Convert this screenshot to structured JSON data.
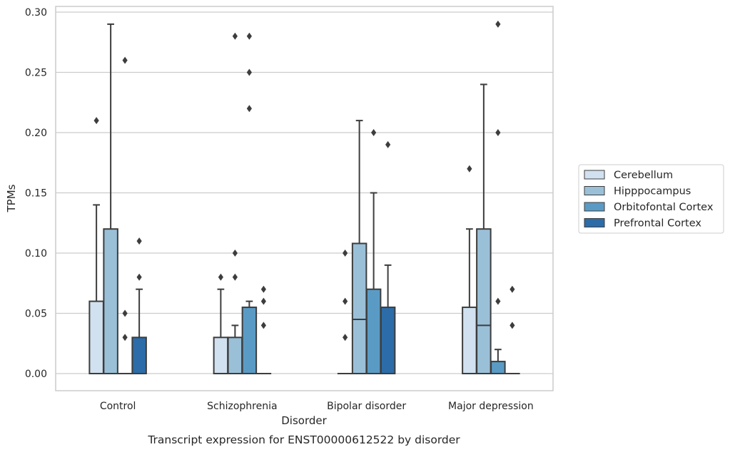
{
  "chart_data": {
    "type": "box",
    "caption": "Transcript expression for ENST00000612522 by disorder",
    "xlabel": "Disorder",
    "ylabel": "TPMs",
    "ylim": [
      -0.014,
      0.303
    ],
    "yticks": [
      0.0,
      0.05,
      0.1,
      0.15,
      0.2,
      0.25,
      0.3
    ],
    "ytick_labels": [
      "0.00",
      "0.05",
      "0.10",
      "0.15",
      "0.20",
      "0.25",
      "0.30"
    ],
    "grid": "horizontal",
    "legend_position": "right",
    "categories": [
      "Control",
      "Schizophrenia",
      "Bipolar disorder",
      "Major depression"
    ],
    "series": [
      {
        "name": "Cerebellum",
        "color": "#d2e1ef",
        "boxes": [
          {
            "q1": 0.0,
            "median": 0.0,
            "q3": 0.06,
            "whisker_low": 0.0,
            "whisker_high": 0.14,
            "outliers": [
              0.21
            ]
          },
          {
            "q1": 0.0,
            "median": 0.0,
            "q3": 0.03,
            "whisker_low": 0.0,
            "whisker_high": 0.07,
            "outliers": [
              0.08
            ]
          },
          {
            "q1": 0.0,
            "median": 0.0,
            "q3": 0.0,
            "whisker_low": 0.0,
            "whisker_high": 0.0,
            "outliers": [
              0.03,
              0.06,
              0.1
            ]
          },
          {
            "q1": 0.0,
            "median": 0.0,
            "q3": 0.055,
            "whisker_low": 0.0,
            "whisker_high": 0.12,
            "outliers": [
              0.17
            ]
          }
        ]
      },
      {
        "name": "Hipppocampus",
        "color": "#9ac0d8",
        "boxes": [
          {
            "q1": 0.0,
            "median": 0.0,
            "q3": 0.12,
            "whisker_low": 0.0,
            "whisker_high": 0.29,
            "outliers": []
          },
          {
            "q1": 0.0,
            "median": 0.0,
            "q3": 0.03,
            "whisker_low": 0.0,
            "whisker_high": 0.04,
            "outliers": [
              0.08,
              0.1,
              0.28
            ]
          },
          {
            "q1": 0.0,
            "median": 0.045,
            "q3": 0.108,
            "whisker_low": 0.0,
            "whisker_high": 0.21,
            "outliers": []
          },
          {
            "q1": 0.0,
            "median": 0.04,
            "q3": 0.12,
            "whisker_low": 0.0,
            "whisker_high": 0.24,
            "outliers": []
          }
        ]
      },
      {
        "name": "Orbitofontal Cortex",
        "color": "#5a9bc5",
        "boxes": [
          {
            "q1": 0.0,
            "median": 0.0,
            "q3": 0.0,
            "whisker_low": 0.0,
            "whisker_high": 0.0,
            "outliers": [
              0.03,
              0.05,
              0.26
            ]
          },
          {
            "q1": 0.0,
            "median": 0.0,
            "q3": 0.055,
            "whisker_low": 0.0,
            "whisker_high": 0.06,
            "outliers": [
              0.22,
              0.25,
              0.28
            ]
          },
          {
            "q1": 0.0,
            "median": 0.0,
            "q3": 0.07,
            "whisker_low": 0.0,
            "whisker_high": 0.15,
            "outliers": [
              0.2
            ]
          },
          {
            "q1": 0.0,
            "median": 0.0,
            "q3": 0.01,
            "whisker_low": 0.0,
            "whisker_high": 0.02,
            "outliers": [
              0.06,
              0.2,
              0.29
            ]
          }
        ]
      },
      {
        "name": "Prefrontal Cortex",
        "color": "#2c6ca8",
        "boxes": [
          {
            "q1": 0.0,
            "median": 0.0,
            "q3": 0.03,
            "whisker_low": 0.0,
            "whisker_high": 0.07,
            "outliers": [
              0.08,
              0.11
            ]
          },
          {
            "q1": 0.0,
            "median": 0.0,
            "q3": 0.0,
            "whisker_low": 0.0,
            "whisker_high": 0.0,
            "outliers": [
              0.04,
              0.06,
              0.07
            ]
          },
          {
            "q1": 0.0,
            "median": 0.0,
            "q3": 0.055,
            "whisker_low": 0.0,
            "whisker_high": 0.09,
            "outliers": [
              0.19
            ]
          },
          {
            "q1": 0.0,
            "median": 0.0,
            "q3": 0.0,
            "whisker_low": 0.0,
            "whisker_high": 0.0,
            "outliers": [
              0.04,
              0.07
            ]
          }
        ]
      }
    ]
  }
}
